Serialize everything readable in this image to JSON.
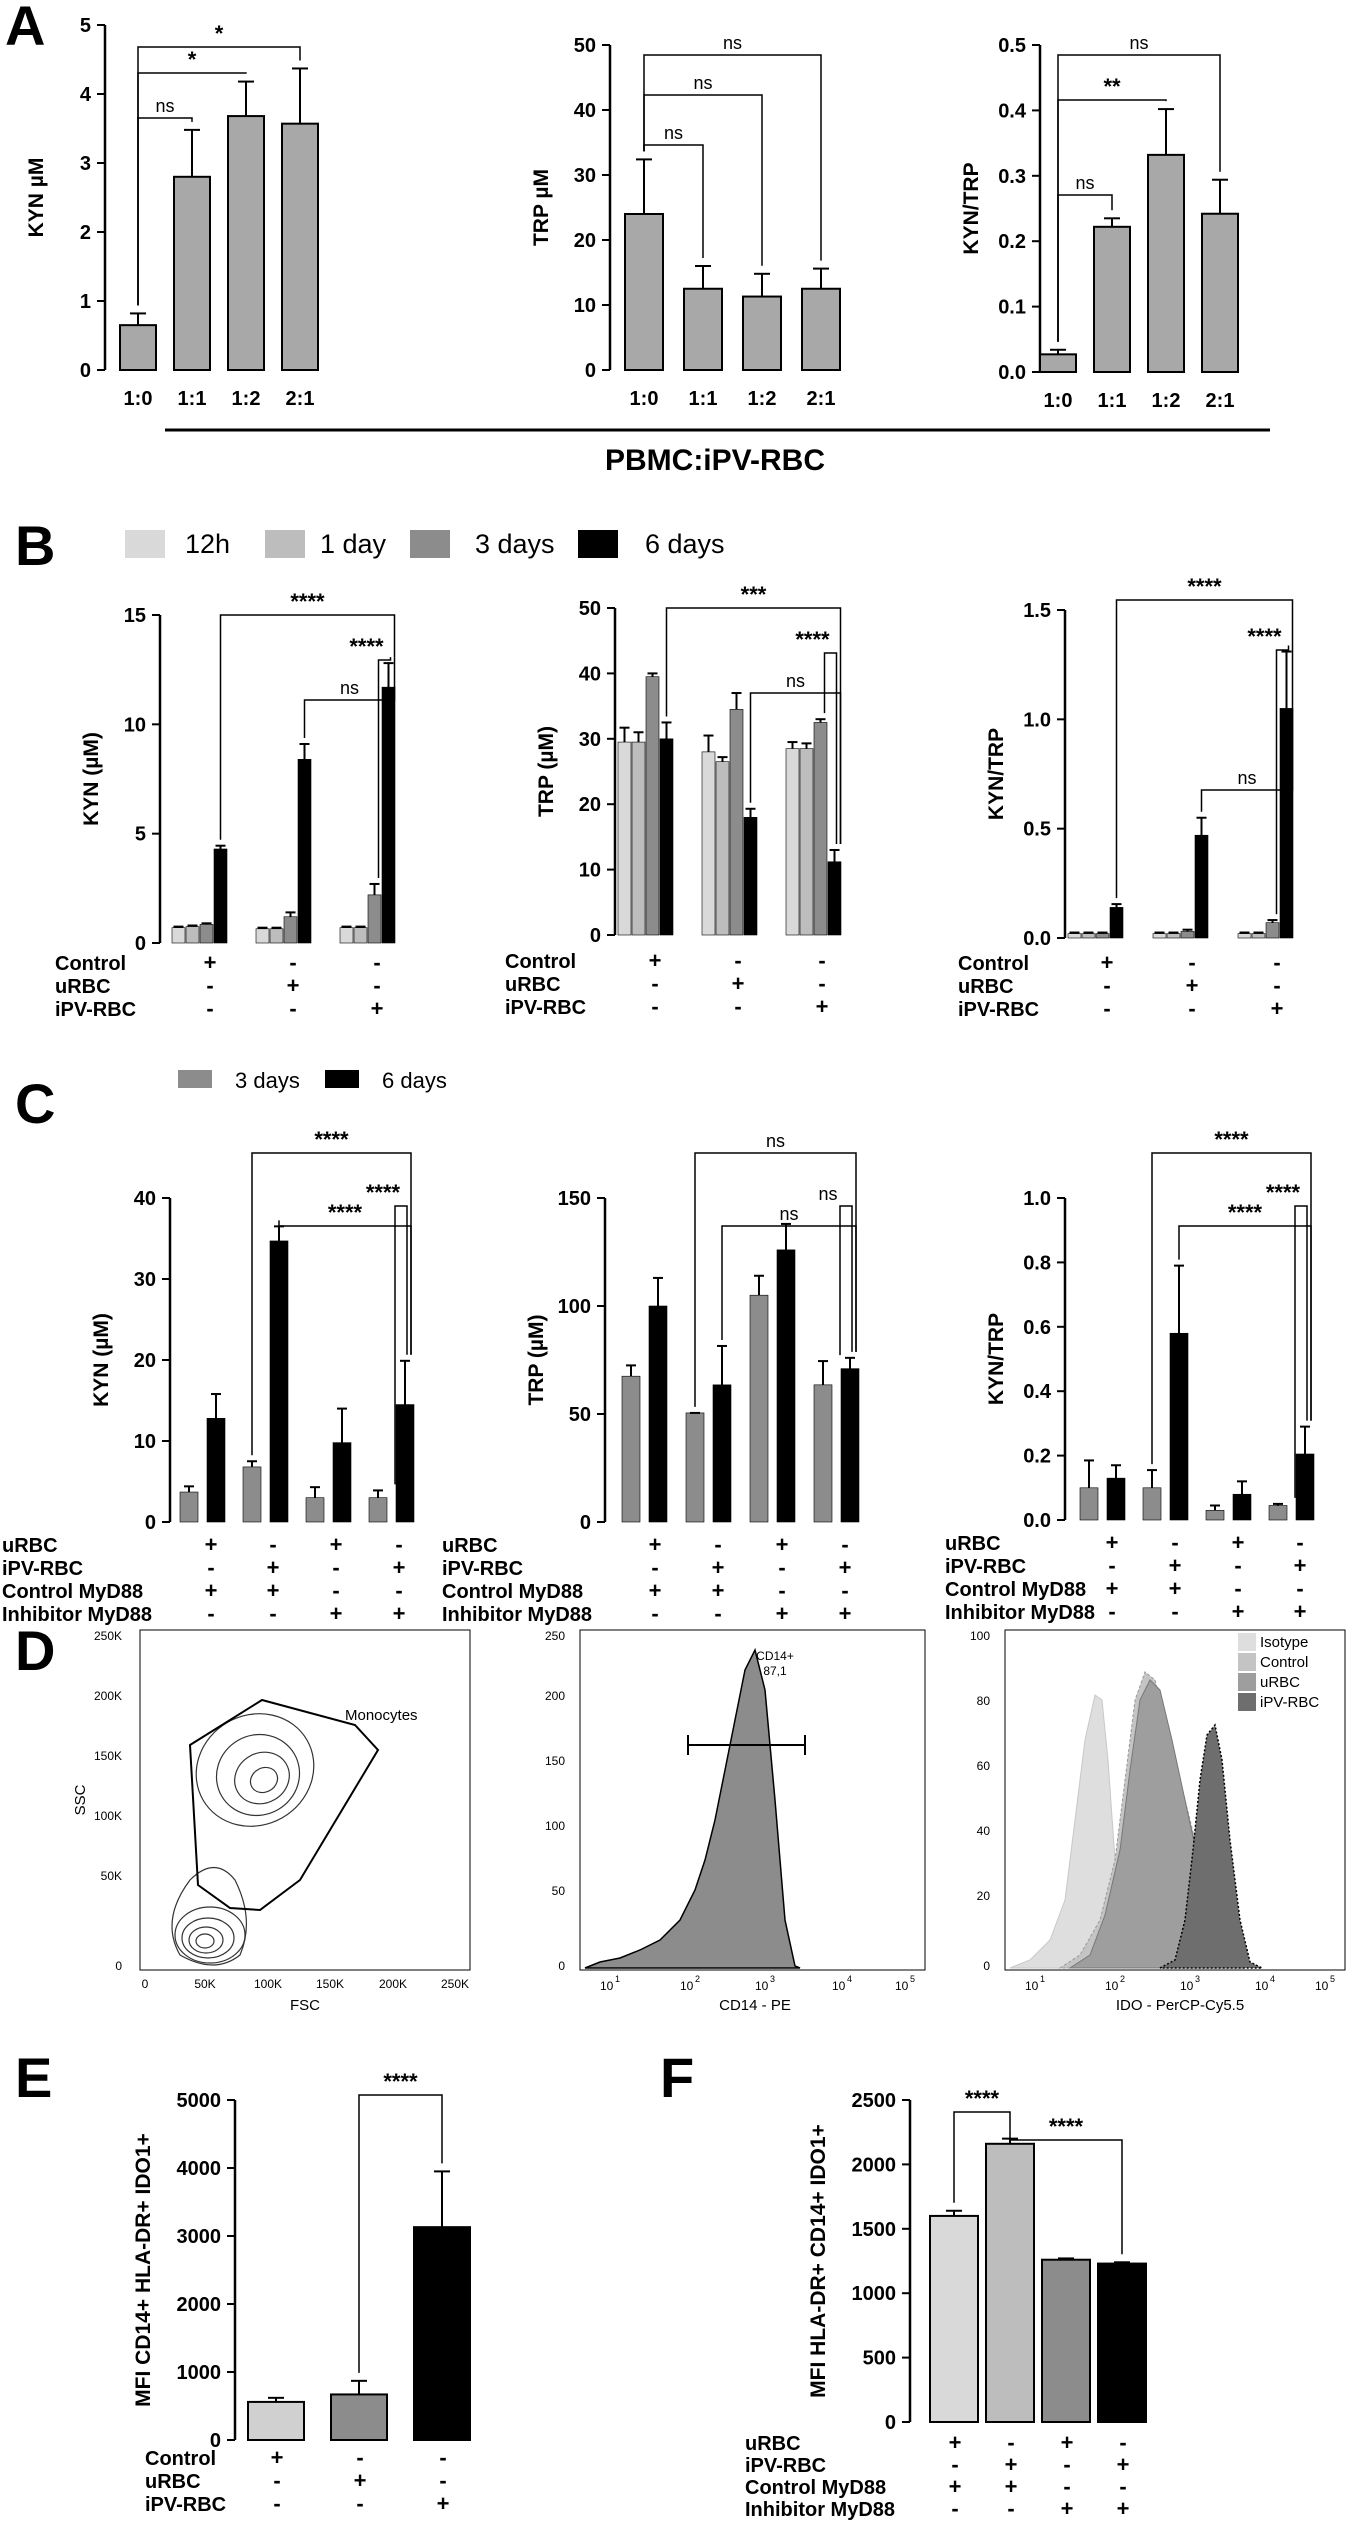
{
  "figure": {
    "panels": [
      "A",
      "B",
      "C",
      "D",
      "E",
      "F"
    ],
    "a_group_label": "PBMC:iPV-RBC",
    "legend_b": [
      "12h",
      "1 day",
      "3 days",
      "6 days"
    ],
    "legend_c": [
      "3 days",
      "6 days"
    ],
    "colors": {
      "12h": "#d9d9d9",
      "1day": "#bdbdbd",
      "3days": "#8c8c8c",
      "6days": "#000000",
      "panelA": "#a8a8a8"
    }
  },
  "chart_data": [
    {
      "id": "A1",
      "type": "bar",
      "ylabel": "KYN µM",
      "ylim": [
        0,
        5
      ],
      "yticks": [
        0,
        1,
        2,
        3,
        4,
        5
      ],
      "categories": [
        "1:0",
        "1:1",
        "1:2",
        "2:1"
      ],
      "values": [
        0.65,
        2.8,
        3.68,
        3.57
      ],
      "errors": [
        0.17,
        0.68,
        0.5,
        0.8
      ],
      "sig": [
        {
          "from": 0,
          "to": 3,
          "label": "*"
        },
        {
          "from": 0,
          "to": 2,
          "label": "*"
        },
        {
          "from": 0,
          "to": 1,
          "label": "ns"
        }
      ]
    },
    {
      "id": "A2",
      "type": "bar",
      "ylabel": "TRP µM",
      "ylim": [
        0,
        50
      ],
      "yticks": [
        0,
        10,
        20,
        30,
        40,
        50
      ],
      "categories": [
        "1:0",
        "1:1",
        "1:2",
        "2:1"
      ],
      "values": [
        24,
        12.5,
        11.3,
        12.5
      ],
      "errors": [
        8.4,
        3.5,
        3.5,
        3.1
      ],
      "sig": [
        {
          "from": 0,
          "to": 3,
          "label": "ns"
        },
        {
          "from": 0,
          "to": 2,
          "label": "ns"
        },
        {
          "from": 0,
          "to": 1,
          "label": "ns"
        }
      ]
    },
    {
      "id": "A3",
      "type": "bar",
      "ylabel": "KYN/TRP",
      "ylim": [
        0,
        0.5
      ],
      "yticks": [
        0.0,
        0.1,
        0.2,
        0.3,
        0.4,
        0.5
      ],
      "categories": [
        "1:0",
        "1:1",
        "1:2",
        "2:1"
      ],
      "values": [
        0.027,
        0.222,
        0.332,
        0.242
      ],
      "errors": [
        0.007,
        0.013,
        0.07,
        0.052
      ],
      "sig": [
        {
          "from": 0,
          "to": 3,
          "label": "ns"
        },
        {
          "from": 0,
          "to": 2,
          "label": "**"
        },
        {
          "from": 0,
          "to": 1,
          "label": "ns"
        }
      ]
    },
    {
      "id": "B1",
      "type": "bar",
      "ylabel": "KYN (µM)",
      "ylim": [
        0,
        15
      ],
      "yticks": [
        0,
        5,
        10,
        15
      ],
      "groups": [
        "Control",
        "uRBC",
        "iPV-RBC"
      ],
      "series_names": [
        "12h",
        "1 day",
        "3 days",
        "6 days"
      ],
      "values": [
        [
          0.7,
          0.75,
          0.85,
          4.3
        ],
        [
          0.65,
          0.65,
          1.2,
          8.4
        ],
        [
          0.7,
          0.7,
          2.2,
          11.7
        ]
      ],
      "errors": [
        [
          0.05,
          0.05,
          0.05,
          0.15
        ],
        [
          0.05,
          0.05,
          0.2,
          0.7
        ],
        [
          0.05,
          0.05,
          0.5,
          1.1
        ]
      ],
      "sig": [
        {
          "from": [
            2,
            3
          ],
          "to": [
            1,
            3
          ],
          "label": "ns"
        },
        {
          "from": [
            2,
            3
          ],
          "to": [
            0,
            3
          ],
          "label": "****"
        },
        {
          "from": [
            2,
            3
          ],
          "to": [
            2,
            2
          ],
          "label": "****"
        }
      ]
    },
    {
      "id": "B2",
      "type": "bar",
      "ylabel": "TRP (µM)",
      "ylim": [
        0,
        50
      ],
      "yticks": [
        0,
        10,
        20,
        30,
        40,
        50
      ],
      "groups": [
        "Control",
        "uRBC",
        "iPV-RBC"
      ],
      "series_names": [
        "12h",
        "1 day",
        "3 days",
        "6 days"
      ],
      "values": [
        [
          29.5,
          29.5,
          39.5,
          30
        ],
        [
          28,
          26.5,
          34.5,
          18
        ],
        [
          28.5,
          28.5,
          32.5,
          11.2
        ]
      ],
      "errors": [
        [
          2.2,
          1.5,
          0.5,
          2.5
        ],
        [
          2.5,
          0.7,
          2.5,
          1.3
        ],
        [
          1,
          0.8,
          0.5,
          1.8
        ]
      ],
      "sig": [
        {
          "from": [
            2,
            3
          ],
          "to": [
            1,
            3
          ],
          "label": "ns"
        },
        {
          "from": [
            2,
            3
          ],
          "to": [
            0,
            3
          ],
          "label": "***"
        },
        {
          "from": [
            2,
            3
          ],
          "to": [
            2,
            2
          ],
          "label": "****"
        }
      ]
    },
    {
      "id": "B3",
      "type": "bar",
      "ylabel": "KYN/TRP",
      "ylim": [
        0,
        1.5
      ],
      "yticks": [
        0.0,
        0.5,
        1.0,
        1.5
      ],
      "groups": [
        "Control",
        "uRBC",
        "iPV-RBC"
      ],
      "series_names": [
        "12h",
        "1 day",
        "3 days",
        "6 days"
      ],
      "values": [
        [
          0.02,
          0.02,
          0.02,
          0.14
        ],
        [
          0.02,
          0.02,
          0.03,
          0.47
        ],
        [
          0.02,
          0.02,
          0.07,
          1.05
        ]
      ],
      "errors": [
        [
          0.005,
          0.005,
          0.005,
          0.015
        ],
        [
          0.005,
          0.005,
          0.008,
          0.08
        ],
        [
          0.005,
          0.005,
          0.012,
          0.26
        ]
      ],
      "sig": [
        {
          "from": [
            2,
            3
          ],
          "to": [
            1,
            3
          ],
          "label": "ns"
        },
        {
          "from": [
            2,
            3
          ],
          "to": [
            0,
            3
          ],
          "label": "****"
        },
        {
          "from": [
            2,
            3
          ],
          "to": [
            2,
            2
          ],
          "label": "****"
        }
      ]
    },
    {
      "id": "C1",
      "type": "bar",
      "ylabel": "KYN (µM)",
      "ylim": [
        0,
        40
      ],
      "yticks": [
        0,
        10,
        20,
        30,
        40
      ],
      "groups": [
        "g1",
        "g2",
        "g3",
        "g4"
      ],
      "series_names": [
        "3 days",
        "6 days"
      ],
      "values": [
        [
          3.7,
          12.8
        ],
        [
          6.8,
          34.7
        ],
        [
          3,
          9.8
        ],
        [
          3,
          14.5
        ]
      ],
      "errors": [
        [
          0.7,
          3
        ],
        [
          0.7,
          1.8
        ],
        [
          1.3,
          4.2
        ],
        [
          0.9,
          5.4
        ]
      ],
      "sig": [
        {
          "from": [
            3,
            1
          ],
          "to": [
            1,
            1
          ],
          "label": "****"
        },
        {
          "from": [
            3,
            1
          ],
          "to": [
            1,
            0
          ],
          "label": "****"
        },
        {
          "from": [
            3,
            1
          ],
          "to": [
            3,
            0
          ],
          "label": "****"
        }
      ]
    },
    {
      "id": "C2",
      "type": "bar",
      "ylabel": "TRP (µM)",
      "ylim": [
        0,
        150
      ],
      "yticks": [
        0,
        50,
        100,
        150
      ],
      "groups": [
        "g1",
        "g2",
        "g3",
        "g4"
      ],
      "series_names": [
        "3 days",
        "6 days"
      ],
      "values": [
        [
          67.5,
          100
        ],
        [
          50.5,
          63.5
        ],
        [
          105,
          126
        ],
        [
          63.5,
          71
        ]
      ],
      "errors": [
        [
          5,
          13
        ],
        [
          0,
          18
        ],
        [
          9,
          12
        ],
        [
          11,
          5
        ]
      ],
      "sig": [
        {
          "from": [
            3,
            1
          ],
          "to": [
            1,
            1
          ],
          "label": "ns"
        },
        {
          "from": [
            3,
            1
          ],
          "to": [
            1,
            0
          ],
          "label": "ns"
        },
        {
          "from": [
            3,
            1
          ],
          "to": [
            3,
            0
          ],
          "label": "ns"
        }
      ]
    },
    {
      "id": "C3",
      "type": "bar",
      "ylabel": "KYN/TRP",
      "ylim": [
        0,
        1.0
      ],
      "yticks": [
        0.0,
        0.2,
        0.4,
        0.6,
        0.8,
        1.0
      ],
      "groups": [
        "g1",
        "g2",
        "g3",
        "g4"
      ],
      "series_names": [
        "3 days",
        "6 days"
      ],
      "values": [
        [
          0.1,
          0.13
        ],
        [
          0.1,
          0.58
        ],
        [
          0.03,
          0.08
        ],
        [
          0.045,
          0.205
        ]
      ],
      "errors": [
        [
          0.085,
          0.04
        ],
        [
          0.055,
          0.21
        ],
        [
          0.015,
          0.04
        ],
        [
          0.005,
          0.085
        ]
      ],
      "sig": [
        {
          "from": [
            3,
            1
          ],
          "to": [
            1,
            1
          ],
          "label": "****"
        },
        {
          "from": [
            3,
            1
          ],
          "to": [
            1,
            0
          ],
          "label": "****"
        },
        {
          "from": [
            3,
            1
          ],
          "to": [
            3,
            0
          ],
          "label": "****"
        }
      ]
    },
    {
      "id": "E",
      "type": "bar",
      "ylabel": "MFI CD14+ HLA-DR+ IDO1+",
      "ylim": [
        0,
        5000
      ],
      "yticks": [
        0,
        1000,
        2000,
        3000,
        4000,
        5000
      ],
      "categories": [
        "Control",
        "uRBC",
        "iPV-RBC"
      ],
      "values": [
        560,
        670,
        3130
      ],
      "errors": [
        60,
        200,
        820
      ],
      "colors": [
        "#d0d0d0",
        "#8c8c8c",
        "#000000"
      ],
      "sig": [
        {
          "from": 1,
          "to": 2,
          "label": "****"
        }
      ]
    },
    {
      "id": "F",
      "type": "bar",
      "ylabel": "MFI HLA-DR+ CD14+ IDO1+",
      "ylim": [
        0,
        2500
      ],
      "yticks": [
        0,
        500,
        1000,
        1500,
        2000,
        2500
      ],
      "categories": [
        "g1",
        "g2",
        "g3",
        "g4"
      ],
      "values": [
        1600,
        2160,
        1260,
        1230
      ],
      "errors": [
        40,
        40,
        10,
        10
      ],
      "colors": [
        "#d9d9d9",
        "#bdbdbd",
        "#8c8c8c",
        "#000000"
      ],
      "sig": [
        {
          "from": 0,
          "to": 1,
          "label": "****"
        },
        {
          "from": 1,
          "to": 3,
          "label": "****"
        }
      ]
    }
  ],
  "conditions": {
    "B": {
      "rows": [
        "Control",
        "uRBC",
        "iPV-RBC"
      ],
      "signs": [
        [
          "+",
          "-",
          "-"
        ],
        [
          "-",
          "+",
          "-"
        ],
        [
          "-",
          "-",
          "+"
        ]
      ]
    },
    "C": {
      "rows": [
        "uRBC",
        "iPV-RBC",
        "Control MyD88",
        "Inhibitor MyD88"
      ],
      "signs": [
        [
          "+",
          "-",
          "+",
          "-"
        ],
        [
          "-",
          "+",
          "-",
          "+"
        ],
        [
          "+",
          "+",
          "-",
          "-"
        ],
        [
          "-",
          "-",
          "+",
          "+"
        ]
      ]
    },
    "E": {
      "rows": [
        "Control",
        "uRBC",
        "iPV-RBC"
      ],
      "signs": [
        [
          "+",
          "-",
          "-"
        ],
        [
          "-",
          "+",
          "-"
        ],
        [
          "-",
          "-",
          "+"
        ]
      ]
    },
    "F": {
      "rows": [
        "uRBC",
        "iPV-RBC",
        "Control MyD88",
        "Inhibitor MyD88"
      ],
      "signs": [
        [
          "+",
          "-",
          "+",
          "-"
        ],
        [
          "-",
          "+",
          "-",
          "+"
        ],
        [
          "+",
          "+",
          "-",
          "-"
        ],
        [
          "-",
          "-",
          "+",
          "+"
        ]
      ]
    }
  },
  "flow": {
    "d1": {
      "xlabel": "FSC",
      "ylabel": "SSC",
      "gate_label": "Monocytes",
      "xticks": [
        "0",
        "50K",
        "100K",
        "150K",
        "200K",
        "250K"
      ],
      "yticks": [
        "0",
        "50K",
        "100K",
        "150K",
        "200K",
        "250K"
      ]
    },
    "d2": {
      "xlabel": "CD14 - PE",
      "gate_label": "CD14+",
      "gate_value": "87,1",
      "yticks": [
        "0",
        "50",
        "100",
        "150",
        "200",
        "250"
      ],
      "xticks": [
        "10",
        "1",
        "10",
        "2",
        "10",
        "3",
        "10",
        "4",
        "10",
        "5"
      ]
    },
    "d3": {
      "xlabel": "IDO - PerCP-Cy5.5",
      "yticks": [
        "0",
        "20",
        "40",
        "60",
        "80",
        "100"
      ],
      "xticks": [
        "10",
        "1",
        "10",
        "2",
        "10",
        "3",
        "10",
        "4",
        "10",
        "5"
      ],
      "legend": [
        "Isotype",
        "Control",
        "uRBC",
        "iPV-RBC"
      ],
      "colors": [
        "#dedede",
        "#c4c4c4",
        "#9e9e9e",
        "#6e6e6e"
      ]
    }
  }
}
